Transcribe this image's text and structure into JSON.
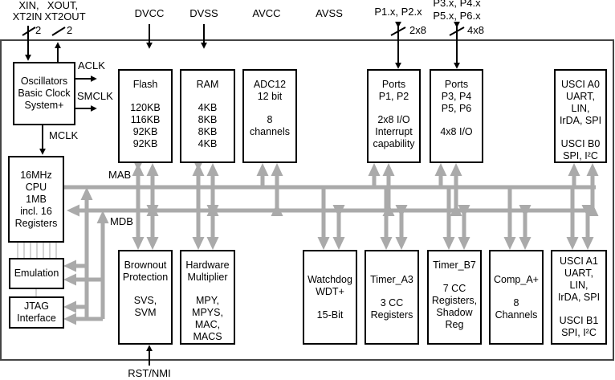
{
  "external_pins": {
    "xin": [
      "XIN,",
      "XT2IN"
    ],
    "xin_width": "2",
    "xout": [
      "XOUT,",
      "XT2OUT"
    ],
    "xout_width": "2",
    "dvcc": "DVCC",
    "dvss": "DVSS",
    "avcc": "AVCC",
    "avss": "AVSS",
    "p12": "P1.x, P2.x",
    "p12_width": "2x8",
    "p36": [
      "P3.x, P4.x",
      "P5.x, P6.x"
    ],
    "p36_width": "4x8",
    "rst": "RST/NMI"
  },
  "signals": {
    "aclk": "ACLK",
    "smclk": "SMCLK",
    "mclk": "MCLK",
    "mab": "MAB",
    "mdb": "MDB"
  },
  "blocks": {
    "oscillators": [
      [
        "Oscillators",
        "Basic Clock",
        "System+"
      ]
    ],
    "flash": [
      [
        "Flash"
      ],
      [
        "120KB",
        "116KB",
        "92KB",
        "92KB"
      ]
    ],
    "ram": [
      [
        "RAM"
      ],
      [
        "4KB",
        "8KB",
        "8KB",
        "4KB"
      ]
    ],
    "adc": [
      [
        "ADC12",
        "12 bit"
      ],
      [
        "8",
        "channels"
      ]
    ],
    "ports12": [
      [
        "Ports",
        "P1, P2"
      ],
      [
        "2x8 I/O",
        "Interrupt",
        "capability"
      ]
    ],
    "ports36": [
      [
        "Ports",
        "P3, P4",
        "P5, P6"
      ],
      [
        "4x8 I/O"
      ]
    ],
    "usci0": [
      [
        "USCI A0",
        "UART,",
        "LIN,",
        "IrDA, SPI"
      ],
      [
        "USCI B0",
        "SPI, I²C"
      ]
    ],
    "cpu": [
      [
        "16MHz",
        "CPU",
        "1MB",
        "incl. 16",
        "Registers"
      ]
    ],
    "emulation": [
      [
        "Emulation"
      ]
    ],
    "jtag": [
      [
        "JTAG",
        "Interface"
      ]
    ],
    "brownout": [
      [
        "Brownout",
        "Protection"
      ],
      [
        "SVS,",
        "SVM"
      ]
    ],
    "mpy": [
      [
        "Hardware",
        "Multiplier"
      ],
      [
        "MPY,",
        "MPYS,",
        "MAC,",
        "MACS"
      ]
    ],
    "watchdog": [
      [
        "Watchdog",
        "WDT+"
      ],
      [
        "15-Bit"
      ]
    ],
    "timer_a3": [
      [
        "Timer_A3"
      ],
      [
        "3 CC",
        "Registers"
      ]
    ],
    "timer_b7": [
      [
        "Timer_B7"
      ],
      [
        "7 CC",
        "Registers,",
        "Shadow",
        "Reg"
      ]
    ],
    "comp": [
      [
        "Comp_A+"
      ],
      [
        "8",
        "Channels"
      ]
    ],
    "usci1": [
      [
        "USCI A1",
        "UART,",
        "LIN,",
        "IrDA, SPI"
      ],
      [
        "USCI B1",
        "SPI, I²C"
      ]
    ]
  },
  "colors": {
    "bus": "#aaaaaa",
    "line": "#000000"
  }
}
